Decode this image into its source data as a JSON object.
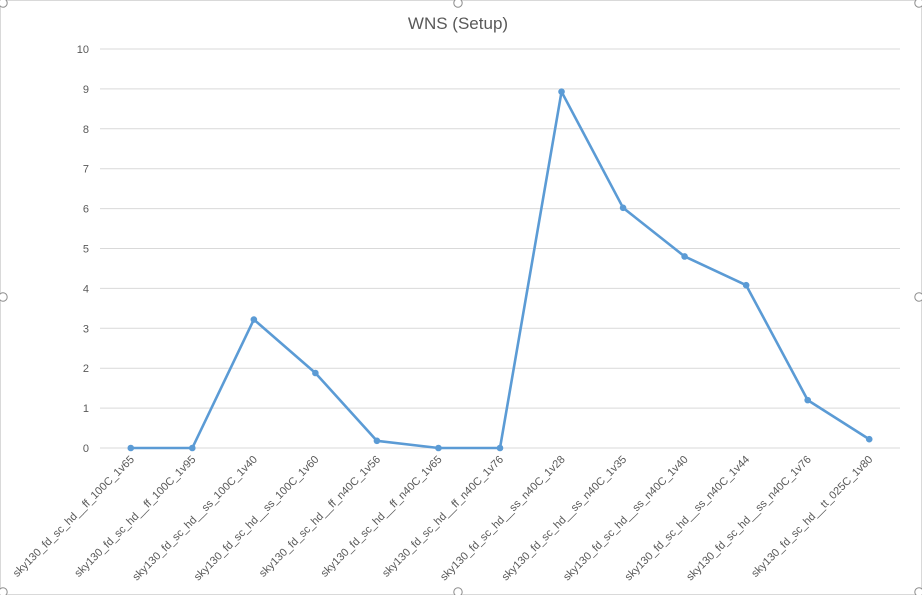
{
  "chart_data": {
    "type": "line",
    "title": "WNS (Setup)",
    "xlabel": "",
    "ylabel": "",
    "ylim": [
      0,
      10
    ],
    "yticks": [
      0,
      1,
      2,
      3,
      4,
      5,
      6,
      7,
      8,
      9,
      10
    ],
    "grid": true,
    "legend": "none",
    "categories": [
      "sky130_fd_sc_hd__ff_100C_1v65",
      "sky130_fd_sc_hd__ff_100C_1v95",
      "sky130_fd_sc_hd__ss_100C_1v40",
      "sky130_fd_sc_hd__ss_100C_1v60",
      "sky130_fd_sc_hd__ff_n40C_1v56",
      "sky130_fd_sc_hd__ff_n40C_1v65",
      "sky130_fd_sc_hd__ff_n40C_1v76",
      "sky130_fd_sc_hd__ss_n40C_1v28",
      "sky130_fd_sc_hd__ss_n40C_1v35",
      "sky130_fd_sc_hd__ss_n40C_1v40",
      "sky130_fd_sc_hd__ss_n40C_1v44",
      "sky130_fd_sc_hd__ss_n40C_1v76",
      "sky130_fd_sc_hd__tt_025C_1v80"
    ],
    "series": [
      {
        "name": "WNS (Setup)",
        "color": "#5B9BD5",
        "values": [
          0,
          0,
          3.22,
          1.88,
          0.18,
          0,
          0,
          8.93,
          6.02,
          4.8,
          4.08,
          1.2,
          0.22
        ]
      }
    ]
  }
}
